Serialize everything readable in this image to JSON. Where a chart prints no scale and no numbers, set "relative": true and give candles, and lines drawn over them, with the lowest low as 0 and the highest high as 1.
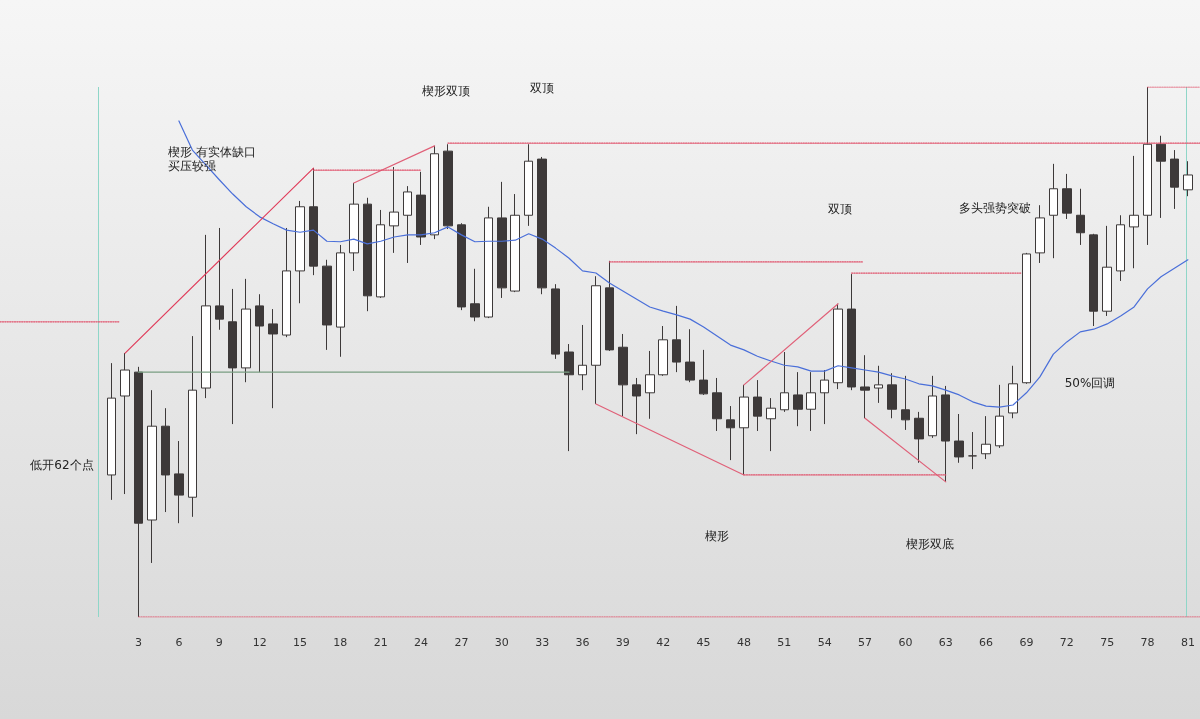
{
  "chart_data": {
    "type": "candlestick",
    "relative": true,
    "color": "#3d3939",
    "marker": "none",
    "tick_labels": "x",
    "x": [
      1,
      2,
      3,
      4,
      5,
      6,
      7,
      8,
      9,
      10,
      11,
      12,
      13,
      14,
      15,
      16,
      17,
      18,
      19,
      20,
      21,
      22,
      23,
      24,
      25,
      26,
      27,
      28,
      29,
      30,
      31,
      32,
      33,
      34,
      35,
      36,
      37,
      38,
      39,
      40,
      41,
      42,
      43,
      44,
      45,
      46,
      47,
      48,
      49,
      50,
      51,
      52,
      53,
      54,
      55,
      56,
      57,
      58,
      59,
      60,
      61,
      62,
      63,
      64,
      65,
      66,
      67,
      68,
      69,
      70,
      71,
      72,
      73,
      74,
      75,
      76,
      77,
      78,
      79,
      80,
      81
    ],
    "xlim": [
      -7.3,
      81.9
    ],
    "xticks": [
      3,
      6,
      9,
      12,
      15,
      18,
      21,
      24,
      27,
      30,
      33,
      36,
      39,
      42,
      45,
      48,
      51,
      54,
      57,
      60,
      63,
      66,
      69,
      72,
      75,
      78,
      81
    ],
    "ohlc": [
      [
        0.268,
        0.479,
        0.221,
        0.413
      ],
      [
        0.417,
        0.498,
        0.232,
        0.466
      ],
      [
        0.462,
        0.472,
        0,
        0.177
      ],
      [
        0.183,
        0.428,
        0.102,
        0.36
      ],
      [
        0.36,
        0.394,
        0.198,
        0.268
      ],
      [
        0.27,
        0.332,
        0.177,
        0.23
      ],
      [
        0.226,
        0.53,
        0.189,
        0.428
      ],
      [
        0.432,
        0.721,
        0.413,
        0.587
      ],
      [
        0.587,
        0.734,
        0.542,
        0.562
      ],
      [
        0.557,
        0.619,
        0.364,
        0.47
      ],
      [
        0.47,
        0.638,
        0.443,
        0.581
      ],
      [
        0.587,
        0.609,
        0.462,
        0.549
      ],
      [
        0.553,
        0.581,
        0.394,
        0.534
      ],
      [
        0.532,
        0.734,
        0.528,
        0.653
      ],
      [
        0.653,
        0.785,
        0.592,
        0.774
      ],
      [
        0.774,
        0.847,
        0.645,
        0.662
      ],
      [
        0.662,
        0.674,
        0.504,
        0.551
      ],
      [
        0.547,
        0.702,
        0.491,
        0.687
      ],
      [
        0.687,
        0.819,
        0.653,
        0.779
      ],
      [
        0.779,
        0.791,
        0.577,
        0.606
      ],
      [
        0.604,
        0.768,
        0.602,
        0.74
      ],
      [
        0.738,
        0.849,
        0.687,
        0.764
      ],
      [
        0.758,
        0.813,
        0.668,
        0.802
      ],
      [
        0.796,
        0.84,
        0.702,
        0.717
      ],
      [
        0.721,
        0.889,
        0.713,
        0.874
      ],
      [
        0.879,
        0.892,
        0.732,
        0.738
      ],
      [
        0.74,
        0.743,
        0.579,
        0.585
      ],
      [
        0.591,
        0.657,
        0.558,
        0.566
      ],
      [
        0.566,
        0.774,
        0.564,
        0.753
      ],
      [
        0.753,
        0.821,
        0.602,
        0.621
      ],
      [
        0.615,
        0.798,
        0.613,
        0.758
      ],
      [
        0.758,
        0.892,
        0.738,
        0.86
      ],
      [
        0.864,
        0.868,
        0.609,
        0.621
      ],
      [
        0.619,
        0.628,
        0.487,
        0.496
      ],
      [
        0.5,
        0.515,
        0.313,
        0.457
      ],
      [
        0.457,
        0.551,
        0.428,
        0.475
      ],
      [
        0.475,
        0.643,
        0.402,
        0.625
      ],
      [
        0.621,
        0.672,
        0.502,
        0.504
      ],
      [
        0.509,
        0.534,
        0.379,
        0.438
      ],
      [
        0.438,
        0.451,
        0.345,
        0.417
      ],
      [
        0.423,
        0.502,
        0.374,
        0.457
      ],
      [
        0.457,
        0.549,
        0.455,
        0.523
      ],
      [
        0.523,
        0.587,
        0.462,
        0.481
      ],
      [
        0.481,
        0.543,
        0.443,
        0.447
      ],
      [
        0.447,
        0.504,
        0.419,
        0.421
      ],
      [
        0.423,
        0.451,
        0.351,
        0.374
      ],
      [
        0.372,
        0.398,
        0.296,
        0.357
      ],
      [
        0.357,
        0.438,
        0.268,
        0.415
      ],
      [
        0.415,
        0.447,
        0.351,
        0.379
      ],
      [
        0.374,
        0.413,
        0.313,
        0.394
      ],
      [
        0.391,
        0.5,
        0.387,
        0.423
      ],
      [
        0.419,
        0.462,
        0.36,
        0.392
      ],
      [
        0.392,
        0.462,
        0.351,
        0.423
      ],
      [
        0.423,
        0.466,
        0.364,
        0.447
      ],
      [
        0.442,
        0.591,
        0.43,
        0.581
      ],
      [
        0.581,
        0.647,
        0.428,
        0.434
      ],
      [
        0.434,
        0.494,
        0.375,
        0.428
      ],
      [
        0.432,
        0.474,
        0.404,
        0.438
      ],
      [
        0.438,
        0.46,
        0.375,
        0.392
      ],
      [
        0.391,
        0.455,
        0.353,
        0.372
      ],
      [
        0.375,
        0.387,
        0.291,
        0.336
      ],
      [
        0.342,
        0.455,
        0.338,
        0.417
      ],
      [
        0.419,
        0.436,
        0.255,
        0.332
      ],
      [
        0.332,
        0.383,
        0.291,
        0.302
      ],
      [
        0.304,
        0.349,
        0.279,
        0.304
      ],
      [
        0.308,
        0.379,
        0.298,
        0.326
      ],
      [
        0.323,
        0.438,
        0.319,
        0.379
      ],
      [
        0.385,
        0.474,
        0.375,
        0.44
      ],
      [
        0.442,
        0.687,
        0.44,
        0.685
      ],
      [
        0.687,
        0.777,
        0.668,
        0.753
      ],
      [
        0.758,
        0.855,
        0.677,
        0.808
      ],
      [
        0.808,
        0.836,
        0.751,
        0.762
      ],
      [
        0.758,
        0.808,
        0.702,
        0.725
      ],
      [
        0.721,
        0.723,
        0.549,
        0.577
      ],
      [
        0.577,
        0.738,
        0.568,
        0.66
      ],
      [
        0.653,
        0.758,
        0.634,
        0.74
      ],
      [
        0.736,
        0.87,
        0.658,
        0.758
      ],
      [
        0.758,
        1,
        0.702,
        0.892
      ],
      [
        0.892,
        0.908,
        0.753,
        0.86
      ],
      [
        0.864,
        0.881,
        0.77,
        0.811
      ],
      [
        0.806,
        0.86,
        0.794,
        0.834
      ]
    ],
    "series": [
      {
        "type": "line",
        "color": "#4a6fd9",
        "line_style": "solid",
        "x": [
          6,
          7,
          8,
          9,
          10,
          11,
          12,
          13,
          14,
          15,
          16,
          17,
          18,
          19,
          20,
          21,
          22,
          23,
          24,
          25,
          26,
          27,
          28,
          29,
          30,
          31,
          32,
          33,
          34,
          35,
          36,
          37,
          38,
          39,
          40,
          41,
          42,
          43,
          44,
          45,
          46,
          47,
          48,
          49,
          50,
          51,
          52,
          53,
          54,
          55,
          56,
          57,
          58,
          59,
          60,
          61,
          62,
          63,
          64,
          65,
          66,
          67,
          68,
          69,
          70,
          71,
          72,
          73,
          74,
          75,
          76,
          77,
          78,
          79,
          80,
          81
        ],
        "values": [
          0.936,
          0.881,
          0.853,
          0.825,
          0.798,
          0.774,
          0.755,
          0.742,
          0.73,
          0.726,
          0.73,
          0.709,
          0.708,
          0.713,
          0.704,
          0.709,
          0.717,
          0.721,
          0.721,
          0.725,
          0.736,
          0.721,
          0.708,
          0.709,
          0.709,
          0.711,
          0.723,
          0.713,
          0.696,
          0.677,
          0.653,
          0.649,
          0.63,
          0.615,
          0.6,
          0.585,
          0.577,
          0.57,
          0.562,
          0.547,
          0.53,
          0.513,
          0.504,
          0.492,
          0.483,
          0.475,
          0.472,
          0.464,
          0.464,
          0.474,
          0.47,
          0.466,
          0.462,
          0.455,
          0.449,
          0.44,
          0.436,
          0.428,
          0.419,
          0.406,
          0.398,
          0.396,
          0.4,
          0.423,
          0.453,
          0.496,
          0.519,
          0.538,
          0.543,
          0.553,
          0.568,
          0.585,
          0.619,
          0.642,
          0.658,
          0.674
        ]
      },
      {
        "type": "line",
        "color": "#e03c5a",
        "line_style": "solid",
        "x": [
          2,
          16
        ],
        "values": [
          0.498,
          0.847
        ]
      },
      {
        "type": "line",
        "color": "#e06078",
        "line_style": "solid",
        "x": [
          19,
          25
        ],
        "values": [
          0.819,
          0.889
        ]
      },
      {
        "type": "line",
        "color": "#e06078",
        "line_style": "solid",
        "x": [
          37,
          48
        ],
        "values": [
          0.402,
          0.268
        ]
      },
      {
        "type": "line",
        "color": "#e06078",
        "line_style": "solid",
        "x": [
          48,
          55
        ],
        "values": [
          0.438,
          0.591
        ]
      },
      {
        "type": "line",
        "color": "#e06078",
        "line_style": "solid",
        "x": [
          57,
          63
        ],
        "values": [
          0.375,
          0.255
        ]
      },
      {
        "type": "line",
        "color": "#7a9e82",
        "line_style": "solid",
        "x": [
          3,
          35
        ],
        "values": [
          0.462,
          0.462
        ]
      },
      {
        "type": "line",
        "color": "#e0506a",
        "line_style": "dotted",
        "x": [
          -7.3,
          1.6
        ],
        "values": [
          0.557,
          0.557
        ]
      },
      {
        "type": "line",
        "color": "#e0506a",
        "line_style": "dotted",
        "x": [
          3,
          81.9
        ],
        "values": [
          0,
          0
        ]
      },
      {
        "type": "line",
        "color": "#e0506a",
        "line_style": "dotted",
        "x": [
          16,
          24
        ],
        "values": [
          0.843,
          0.843
        ]
      },
      {
        "type": "line",
        "color": "#e0506a",
        "line_style": "dotted",
        "x": [
          26,
          81.9
        ],
        "values": [
          0.894,
          0.894
        ]
      },
      {
        "type": "line",
        "color": "#e0506a",
        "line_style": "dotted",
        "x": [
          38,
          56.8
        ],
        "values": [
          0.67,
          0.67
        ]
      },
      {
        "type": "line",
        "color": "#e0506a",
        "line_style": "dotted",
        "x": [
          56,
          68.6
        ],
        "values": [
          0.649,
          0.649
        ]
      },
      {
        "type": "line",
        "color": "#e0506a",
        "line_style": "dotted",
        "x": [
          48,
          63
        ],
        "values": [
          0.268,
          0.268
        ]
      },
      {
        "type": "line",
        "color": "#e0506a",
        "line_style": "dotted",
        "x": [
          78,
          81.9
        ],
        "values": [
          1,
          1
        ]
      }
    ],
    "ref_lines": [
      {
        "axis": "x",
        "value": 0,
        "label": null,
        "color": "#8fd6c8",
        "line_style": "solid"
      },
      {
        "axis": "x",
        "value": 80.85,
        "label": null,
        "color": "#8fd6c8",
        "line_style": "solid"
      }
    ],
    "annotations": [
      "低开62个点",
      "楔形 有实体缺口",
      "买压较强",
      "楔形双顶",
      "双顶",
      "双顶",
      "多头强势突破",
      "50%回调",
      "楔形",
      "楔形双底"
    ]
  }
}
